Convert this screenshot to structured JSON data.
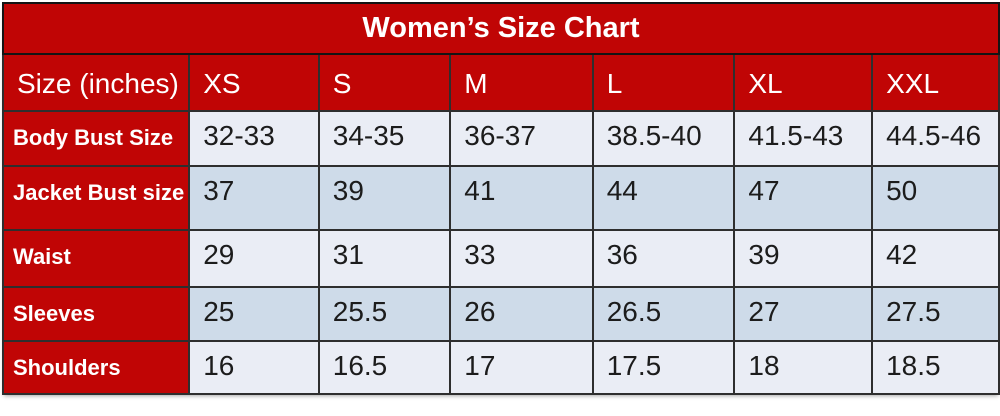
{
  "chart_data": {
    "type": "table",
    "title": "Women’s Size Chart",
    "columns": [
      "Size (inches)",
      "XS",
      "S",
      "M",
      "L",
      "XL",
      "XXL"
    ],
    "rows": [
      [
        "Body Bust Size",
        "32-33",
        "34-35",
        "36-37",
        "38.5-40",
        "41.5-43",
        "44.5-46"
      ],
      [
        "Jacket Bust size",
        "37",
        "39",
        "41",
        "44",
        "47",
        "50"
      ],
      [
        "Waist",
        "29",
        "31",
        "33",
        "36",
        "39",
        "42"
      ],
      [
        "Sleeves",
        "25",
        "25.5",
        "26",
        "26.5",
        "27",
        "27.5"
      ],
      [
        "Shoulders",
        "16",
        "16.5",
        "17",
        "17.5",
        "18",
        "18.5"
      ]
    ],
    "layout_hints": {
      "header_position": "top-row-and-left-column",
      "row_striping": "alternating light/dark starting light",
      "grid": "on"
    }
  },
  "style": {
    "accent_red": "#c00505",
    "row_light": "#eaedf5",
    "row_dark": "#cedbe9",
    "grid_line": "#2e2e2e",
    "text_dark": "#1c1c1c",
    "text_light": "#ffffff"
  }
}
